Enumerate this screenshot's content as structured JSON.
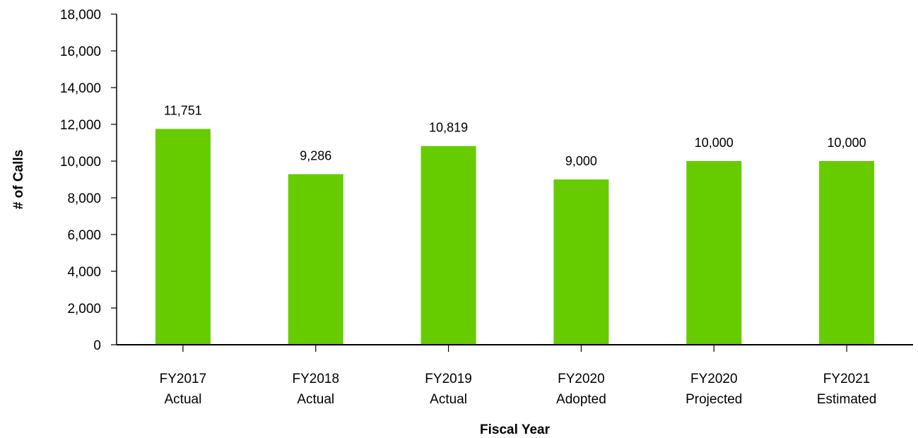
{
  "chart_data": {
    "type": "bar",
    "title": "",
    "xlabel": "Fiscal Year",
    "ylabel": "# of Calls",
    "categories": [
      [
        "FY2017",
        "Actual"
      ],
      [
        "FY2018",
        "Actual"
      ],
      [
        "FY2019",
        "Actual"
      ],
      [
        "FY2020",
        "Adopted"
      ],
      [
        "FY2020",
        "Projected"
      ],
      [
        "FY2021",
        "Estimated"
      ]
    ],
    "values": [
      11751,
      9286,
      10819,
      9000,
      10000,
      10000
    ],
    "value_labels": [
      "11,751",
      "9,286",
      "10,819",
      "9,000",
      "10,000",
      "10,000"
    ],
    "ylim": [
      0,
      18000
    ],
    "yticks": [
      0,
      2000,
      4000,
      6000,
      8000,
      10000,
      12000,
      14000,
      16000,
      18000
    ],
    "ytick_labels": [
      "0",
      "2,000",
      "4,000",
      "6,000",
      "8,000",
      "10,000",
      "12,000",
      "14,000",
      "16,000",
      "18,000"
    ],
    "grid": false,
    "legend": "none",
    "bar_color": "#66cc00",
    "axis_color": "#000000"
  }
}
